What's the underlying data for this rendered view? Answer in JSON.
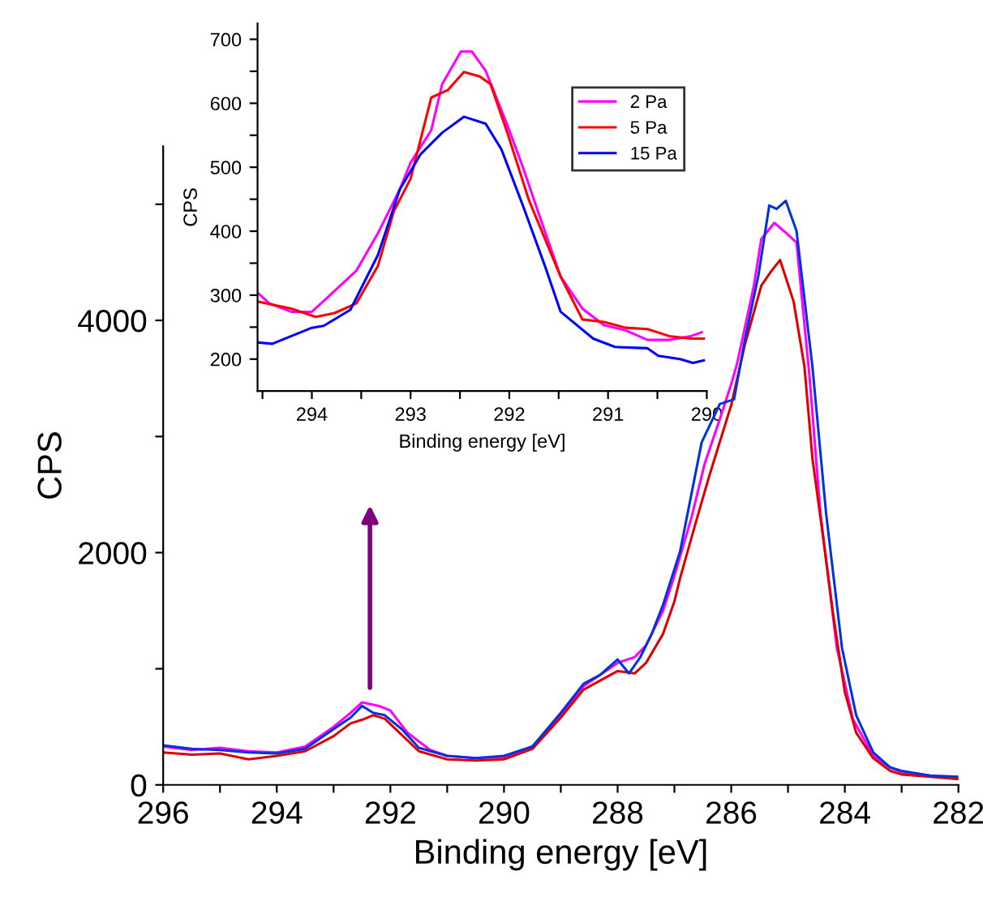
{
  "chart_data": [
    {
      "type": "line",
      "xlabel": "Binding energy [eV]",
      "ylabel": "CPS",
      "xlim": [
        296,
        282
      ],
      "ylim": [
        0,
        5500
      ],
      "xticks": [
        296,
        {
          "value": 295,
          "label": null
        },
        294,
        {
          "value": 293,
          "label": null
        },
        292,
        {
          "value": 291,
          "label": null
        },
        290,
        {
          "value": 289,
          "label": null
        },
        288,
        {
          "value": 287,
          "label": null
        },
        286,
        {
          "value": 285,
          "label": null
        },
        284,
        {
          "value": 283,
          "label": null
        },
        282
      ],
      "yticks": [
        0,
        {
          "value": 1000,
          "label": null
        },
        2000,
        {
          "value": 3000,
          "label": null
        },
        4000,
        {
          "value": 5000,
          "label": null
        }
      ],
      "grid": false,
      "legend": false,
      "marker": "none",
      "line_style": "solid",
      "series": [
        {
          "color": "#ff00ff",
          "x": [
            296,
            295.5,
            295,
            294.5,
            294,
            293.5,
            293,
            292.7,
            292.5,
            292.2,
            292,
            291.7,
            291.3,
            291,
            290.5,
            290,
            289.5,
            289,
            288.6,
            288.3,
            288,
            287.7,
            287.5,
            287.2,
            287,
            286.7,
            286.47,
            286.2,
            286,
            285.9,
            285.6,
            285.47,
            285.24,
            285.05,
            284.85,
            284.62,
            284.43,
            284.14,
            283.86,
            283.5,
            283.2,
            283,
            282.5
          ],
          "values": [
            330,
            300,
            320,
            290,
            280,
            330,
            500,
            620,
            710,
            680,
            640,
            450,
            300,
            250,
            230,
            240,
            330,
            600,
            850,
            950,
            1050,
            1100,
            1200,
            1500,
            1800,
            2300,
            2760,
            3150,
            3450,
            3620,
            4300,
            4700,
            4840,
            4760,
            4670,
            3510,
            2340,
            1180,
            570,
            250,
            150,
            110,
            80
          ]
        },
        {
          "color": "#dd0000",
          "x": [
            296,
            295.5,
            295,
            294.5,
            294,
            293.5,
            293,
            292.7,
            292.5,
            292.3,
            292.1,
            291.8,
            291.5,
            291,
            290.5,
            290,
            289.5,
            289,
            288.6,
            288.3,
            288,
            287.7,
            287.5,
            287.2,
            287,
            286.9,
            286.6,
            286.38,
            286,
            285.76,
            285.47,
            285.3,
            285.14,
            284.9,
            284.71,
            284.57,
            284.4,
            284.2,
            284,
            283.8,
            283.5,
            283.2,
            283,
            282.5,
            282
          ],
          "values": [
            280,
            260,
            270,
            220,
            250,
            290,
            420,
            530,
            560,
            600,
            570,
            430,
            290,
            220,
            210,
            220,
            310,
            580,
            820,
            900,
            980,
            960,
            1050,
            1300,
            1580,
            1780,
            2300,
            2670,
            3270,
            3790,
            4300,
            4420,
            4520,
            4160,
            3600,
            2810,
            2200,
            1450,
            800,
            450,
            230,
            120,
            90,
            70,
            50
          ]
        },
        {
          "color": "#0033dd",
          "x": [
            296,
            295.5,
            295,
            294.5,
            294,
            293.5,
            293,
            292.7,
            292.5,
            292.3,
            292.1,
            291.8,
            291.5,
            291,
            290.5,
            290,
            289.5,
            289,
            288.6,
            288.3,
            288,
            287.8,
            287.6,
            287.4,
            287.2,
            286.9,
            286.52,
            286.2,
            285.95,
            285.76,
            285.52,
            285.33,
            285.2,
            285.04,
            284.85,
            284.57,
            284.33,
            284.05,
            283.8,
            283.5,
            283.2,
            283,
            282.5,
            282
          ],
          "values": [
            340,
            310,
            300,
            280,
            270,
            310,
            480,
            580,
            680,
            620,
            600,
            480,
            320,
            250,
            230,
            250,
            330,
            620,
            870,
            950,
            1080,
            960,
            1100,
            1300,
            1550,
            2010,
            2950,
            3280,
            3320,
            3830,
            4390,
            4990,
            4960,
            5030,
            4770,
            3600,
            2340,
            1180,
            600,
            280,
            150,
            120,
            80,
            70
          ]
        }
      ]
    },
    {
      "type": "line",
      "xlabel": "Binding energy [eV]",
      "ylabel": "CPS",
      "xlim": [
        294.55,
        290
      ],
      "ylim": [
        150,
        725
      ],
      "xticks": [
        {
          "value": 294.5,
          "label": null
        },
        294,
        {
          "value": 293.5,
          "label": null
        },
        293,
        {
          "value": 292.5,
          "label": null
        },
        292,
        {
          "value": 291.5,
          "label": null
        },
        291,
        {
          "value": 290.5,
          "label": null
        },
        290
      ],
      "yticks": [
        200,
        {
          "value": 250,
          "label": null
        },
        300,
        {
          "value": 350,
          "label": null
        },
        400,
        {
          "value": 450,
          "label": null
        },
        500,
        {
          "value": 550,
          "label": null
        },
        600,
        {
          "value": 650,
          "label": null
        },
        700
      ],
      "grid": false,
      "legend": "top right",
      "marker": "none",
      "line_style": "solid",
      "series": [
        {
          "name": "2 Pa",
          "color": "#ff00ff",
          "x": [
            294.55,
            294.43,
            294.21,
            294,
            293.88,
            293.55,
            293.33,
            293.11,
            293.0,
            292.79,
            292.68,
            292.49,
            292.38,
            292.24,
            292.02,
            291.86,
            291.69,
            291.48,
            291.26,
            291.04,
            290.82,
            290.6,
            290.38,
            290.16,
            290.05
          ],
          "values": [
            304,
            287,
            274,
            274,
            291,
            338,
            397,
            465,
            507,
            558,
            630,
            681,
            681,
            651,
            566,
            499,
            422,
            329,
            279,
            253,
            245,
            230,
            230,
            236,
            242
          ]
        },
        {
          "name": "5 Pa",
          "color": "#ff0000",
          "x": [
            294.55,
            294.21,
            293.96,
            293.77,
            293.55,
            293.33,
            293.17,
            293.0,
            292.79,
            292.62,
            292.46,
            292.3,
            292.19,
            292.02,
            291.8,
            291.48,
            291.26,
            291.04,
            290.82,
            290.6,
            290.38,
            290.16,
            290.03
          ],
          "values": [
            290,
            279,
            266,
            272,
            287,
            346,
            431,
            482,
            609,
            621,
            649,
            642,
            630,
            554,
            448,
            329,
            262,
            258,
            249,
            247,
            236,
            232,
            232
          ]
        },
        {
          "name": "15 Pa",
          "color": "#0000ff",
          "x": [
            294.55,
            294.4,
            294,
            293.88,
            293.61,
            293.33,
            293.11,
            292.9,
            292.68,
            292.46,
            292.24,
            292.08,
            291.86,
            291.64,
            291.48,
            291.15,
            290.93,
            290.6,
            290.49,
            290.27,
            290.14,
            290.03
          ],
          "values": [
            226,
            224,
            249,
            252,
            277,
            363,
            465,
            520,
            554,
            579,
            568,
            528,
            439,
            346,
            274,
            232,
            219,
            217,
            205,
            200,
            194,
            198
          ]
        }
      ]
    }
  ]
}
